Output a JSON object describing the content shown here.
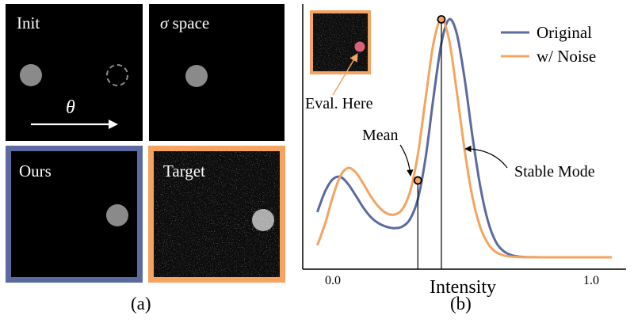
{
  "panel_a": {
    "caption": "(a)",
    "init": {
      "label": "Init",
      "theta_label": "θ"
    },
    "sigma": {
      "label_symbol": "σ",
      "label_text": " space"
    },
    "ours": {
      "label": "Ours",
      "border_color": "#5b6aa0"
    },
    "target": {
      "label": "Target",
      "border_color": "#f4a460"
    }
  },
  "panel_b": {
    "caption": "(b)",
    "inset_annotation": "Eval. Here",
    "mean_annotation": "Mean",
    "mode_annotation": "Stable Mode",
    "inset_border_color": "#f4a460"
  },
  "chart_data": {
    "type": "line",
    "xlabel": "Intensity",
    "xticks": [
      {
        "value": 0.0,
        "label": "0.0"
      },
      {
        "value": 1.0,
        "label": "1.0"
      }
    ],
    "xlim": [
      -0.1,
      1.1
    ],
    "ylim": [
      0,
      1.05
    ],
    "legend_position": "top-right",
    "grid": false,
    "series": [
      {
        "name": "Original",
        "color": "#5b6aa0",
        "x": [
          -0.06,
          -0.03,
          0.0,
          0.03,
          0.06,
          0.09,
          0.12,
          0.15,
          0.18,
          0.21,
          0.24,
          0.27,
          0.3,
          0.33,
          0.36,
          0.39,
          0.42,
          0.45,
          0.48,
          0.51,
          0.54,
          0.57,
          0.6,
          0.63,
          0.66,
          0.69,
          0.72,
          0.75,
          0.8,
          0.85,
          0.9,
          0.95,
          1.0,
          1.05,
          1.08
        ],
        "y": [
          0.205,
          0.289,
          0.339,
          0.348,
          0.318,
          0.27,
          0.22,
          0.181,
          0.157,
          0.144,
          0.139,
          0.146,
          0.178,
          0.262,
          0.434,
          0.677,
          0.894,
          0.992,
          0.932,
          0.749,
          0.517,
          0.313,
          0.169,
          0.085,
          0.046,
          0.029,
          0.023,
          0.021,
          0.02,
          0.02,
          0.02,
          0.02,
          0.02,
          0.02,
          0.02
        ]
      },
      {
        "name": "w/ Noise",
        "color": "#f4a460",
        "x": [
          -0.06,
          -0.03,
          0.0,
          0.03,
          0.06,
          0.09,
          0.12,
          0.15,
          0.18,
          0.21,
          0.24,
          0.27,
          0.3,
          0.33,
          0.36,
          0.39,
          0.42,
          0.45,
          0.48,
          0.51,
          0.54,
          0.57,
          0.6,
          0.63,
          0.66,
          0.69,
          0.72,
          0.75,
          0.8,
          0.85,
          0.9,
          0.95,
          1.0,
          1.05,
          1.08
        ],
        "y": [
          0.069,
          0.157,
          0.268,
          0.354,
          0.385,
          0.365,
          0.317,
          0.264,
          0.223,
          0.199,
          0.195,
          0.218,
          0.292,
          0.446,
          0.677,
          0.897,
          0.992,
          0.908,
          0.694,
          0.458,
          0.268,
          0.145,
          0.077,
          0.042,
          0.028,
          0.023,
          0.021,
          0.02,
          0.02,
          0.02,
          0.02,
          0.02,
          0.02,
          0.02,
          0.02
        ]
      }
    ],
    "markers": [
      {
        "name": "mean",
        "x": 0.329,
        "y": 0.334
      },
      {
        "name": "stable-mode",
        "x": 0.42,
        "y": 0.992
      }
    ]
  }
}
